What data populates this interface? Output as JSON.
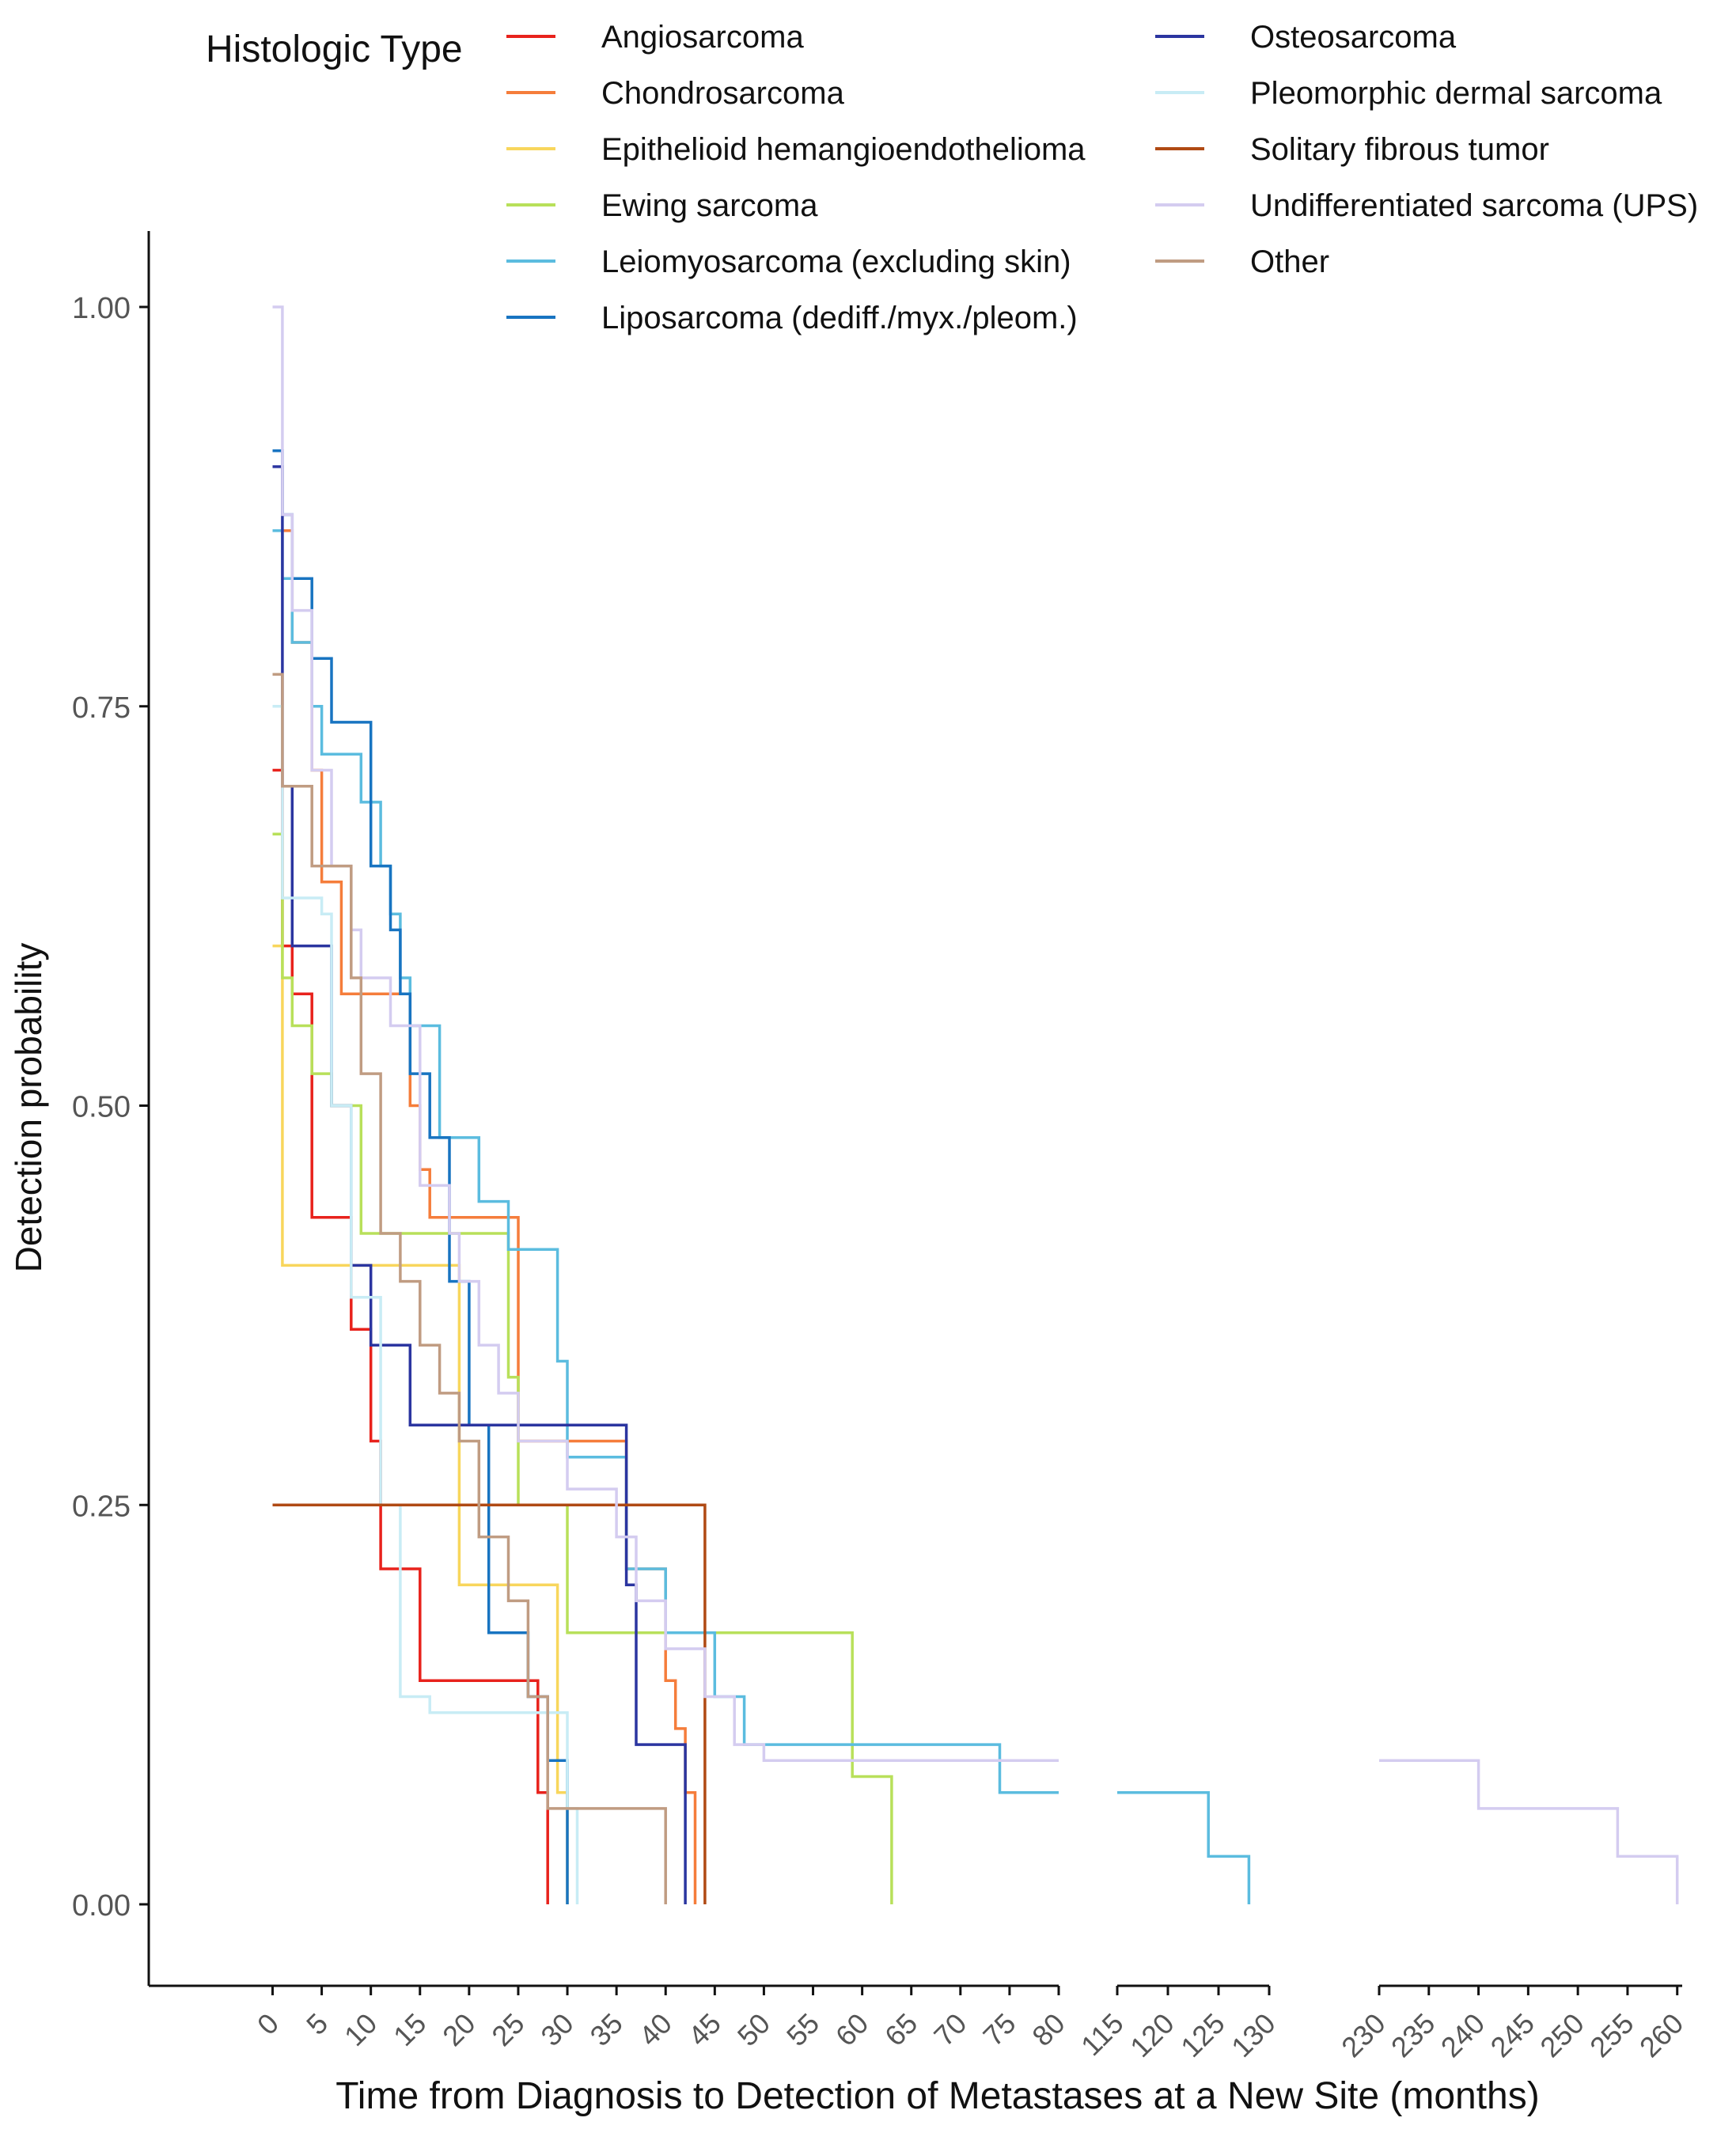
{
  "chart_data": {
    "type": "line",
    "step": true,
    "title": "",
    "xlabel": "Time from Diagnosis to Detection of Metastases at a New Site (months)",
    "ylabel": "Detection probability",
    "ylim": [
      0,
      1
    ],
    "y_ticks": [
      "0.00",
      "0.25",
      "0.50",
      "0.75",
      "1.00"
    ],
    "x_segments": [
      {
        "range": [
          -12.6,
          80
        ],
        "ticks": [
          "0",
          "5",
          "10",
          "15",
          "20",
          "25",
          "30",
          "35",
          "40",
          "45",
          "50",
          "55",
          "60",
          "65",
          "70",
          "75",
          "80"
        ]
      },
      {
        "range": [
          115,
          130
        ],
        "ticks": [
          "115",
          "120",
          "125",
          "130"
        ]
      },
      {
        "range": [
          230,
          260.5
        ],
        "ticks": [
          "230",
          "235",
          "240",
          "245",
          "250",
          "255",
          "260"
        ]
      }
    ],
    "legend": {
      "title": "Histologic Type",
      "position": "top",
      "entries": [
        "Angiosarcoma",
        "Chondrosarcoma",
        "Epithelioid hemangioendothelioma",
        "Ewing sarcoma",
        "Leiomyosarcoma (excluding skin)",
        "Liposarcoma (dediff./myx./pleom.)",
        "Osteosarcoma",
        "Pleomorphic dermal sarcoma",
        "Solitary fibrous tumor",
        "Undifferentiated sarcoma (UPS)",
        "Other"
      ]
    },
    "series": [
      {
        "name": "Angiosarcoma",
        "color": "#e8221c",
        "x": [
          0,
          1,
          2,
          4,
          8,
          10,
          11,
          15,
          27,
          28
        ],
        "y": [
          0.71,
          0.6,
          0.57,
          0.43,
          0.36,
          0.29,
          0.21,
          0.14,
          0.07,
          0.0
        ]
      },
      {
        "name": "Chondrosarcoma",
        "color": "#f57d3b",
        "x": [
          0,
          2,
          4,
          5,
          7,
          14,
          15,
          16,
          25,
          36,
          40,
          41,
          42,
          43
        ],
        "y": [
          0.86,
          0.79,
          0.71,
          0.64,
          0.57,
          0.5,
          0.46,
          0.43,
          0.29,
          0.21,
          0.14,
          0.11,
          0.07,
          0.0
        ]
      },
      {
        "name": "Epithelioid hemangioendothelioma",
        "color": "#f8d65c",
        "x": [
          0,
          1,
          19,
          29,
          30
        ],
        "y": [
          0.6,
          0.4,
          0.2,
          0.07,
          0.0
        ]
      },
      {
        "name": "Ewing sarcoma",
        "color": "#b8e05a",
        "x": [
          0,
          1,
          2,
          4,
          6,
          9,
          24,
          25,
          30,
          59,
          63
        ],
        "y": [
          0.67,
          0.58,
          0.55,
          0.52,
          0.5,
          0.42,
          0.33,
          0.25,
          0.17,
          0.08,
          0.0
        ]
      },
      {
        "name": "Leiomyosarcoma (excluding skin)",
        "color": "#5bbcdf",
        "x": [
          0,
          1,
          2,
          4,
          5,
          9,
          11,
          12,
          13,
          14,
          17,
          21,
          24,
          29,
          30,
          36,
          40,
          45,
          48,
          74,
          124,
          128
        ],
        "y": [
          0.86,
          0.83,
          0.79,
          0.75,
          0.72,
          0.69,
          0.65,
          0.62,
          0.58,
          0.55,
          0.48,
          0.44,
          0.41,
          0.34,
          0.28,
          0.21,
          0.17,
          0.13,
          0.1,
          0.07,
          0.03,
          0.0
        ]
      },
      {
        "name": "Liposarcoma (dediff./myx./pleom.)",
        "color": "#1874c1",
        "x": [
          0,
          1,
          2,
          4,
          6,
          10,
          12,
          13,
          14,
          16,
          18,
          20,
          22,
          26,
          28,
          30
        ],
        "y": [
          0.91,
          0.87,
          0.83,
          0.78,
          0.74,
          0.65,
          0.61,
          0.57,
          0.52,
          0.48,
          0.39,
          0.3,
          0.17,
          0.13,
          0.09,
          0.04
        ]
      },
      {
        "name": "Osteosarcoma",
        "color": "#2b35a0",
        "x": [
          0,
          1,
          2,
          6,
          8,
          10,
          14,
          36,
          37,
          42
        ],
        "y": [
          0.9,
          0.7,
          0.6,
          0.5,
          0.4,
          0.35,
          0.3,
          0.2,
          0.1,
          0.0
        ]
      },
      {
        "name": "Pleomorphic dermal sarcoma",
        "color": "#c8ecf5",
        "x": [
          0,
          1,
          5,
          6,
          8,
          11,
          13,
          16,
          30,
          31
        ],
        "y": [
          0.75,
          0.63,
          0.62,
          0.5,
          0.38,
          0.25,
          0.13,
          0.12,
          0.06,
          0.0
        ]
      },
      {
        "name": "Solitary fibrous tumor",
        "color": "#b04a14",
        "x": [
          0,
          44
        ],
        "y": [
          0.25,
          0.0
        ]
      },
      {
        "name": "Undifferentiated sarcoma (UPS)",
        "color": "#d4ccf0",
        "x": [
          0,
          1,
          2,
          4,
          6,
          8,
          9,
          12,
          15,
          18,
          19,
          21,
          23,
          25,
          30,
          35,
          37,
          40,
          44,
          47,
          50,
          240,
          254,
          260
        ],
        "y": [
          1.0,
          0.87,
          0.81,
          0.71,
          0.65,
          0.61,
          0.58,
          0.55,
          0.45,
          0.42,
          0.39,
          0.35,
          0.32,
          0.29,
          0.26,
          0.23,
          0.19,
          0.16,
          0.13,
          0.1,
          0.09,
          0.06,
          0.03,
          0.0
        ]
      },
      {
        "name": "Other",
        "color": "#c09c82",
        "x": [
          0,
          1,
          4,
          8,
          9,
          11,
          13,
          15,
          17,
          19,
          21,
          24,
          26,
          28,
          40
        ],
        "y": [
          0.77,
          0.7,
          0.65,
          0.58,
          0.52,
          0.42,
          0.39,
          0.35,
          0.32,
          0.29,
          0.23,
          0.19,
          0.13,
          0.06,
          0.03
        ]
      }
    ]
  }
}
